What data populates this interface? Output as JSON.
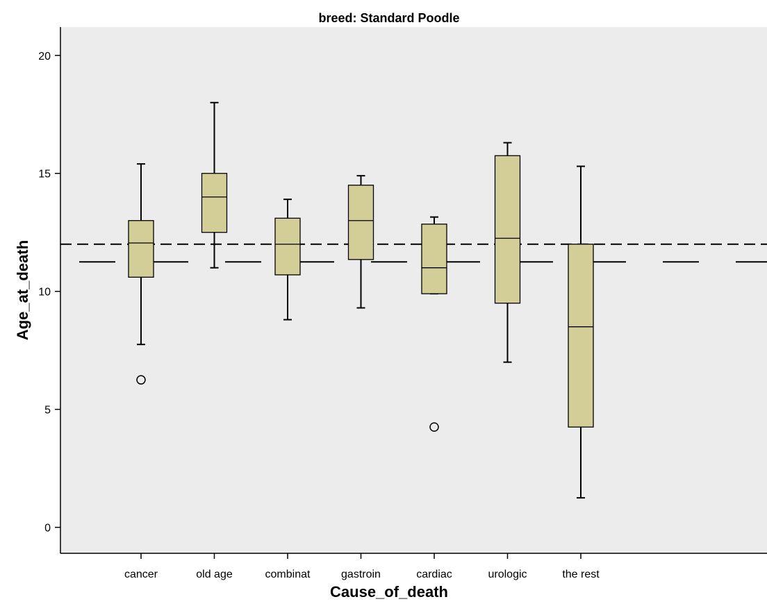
{
  "colors": {
    "plot_background": "#ececec",
    "box_fill": "#d3cd98",
    "stroke": "#000000"
  },
  "chart_data": {
    "type": "boxplot",
    "title": "breed: Standard Poodle",
    "xlabel": "Cause_of_death",
    "ylabel": "Age_at_death",
    "ylim": [
      -1.1,
      21.2
    ],
    "yticks": [
      0,
      5,
      10,
      15,
      20
    ],
    "grid": false,
    "categories": [
      "cancer",
      "old age",
      "combinat",
      "gastroin",
      "cardiac",
      "urologic",
      "the rest"
    ],
    "boxes": [
      {
        "category": "cancer",
        "whisker_low": 7.75,
        "q1": 10.6,
        "median": 12.05,
        "q3": 13.0,
        "whisker_high": 15.4,
        "outliers": [
          6.25
        ]
      },
      {
        "category": "old age",
        "whisker_low": 11.0,
        "q1": 12.5,
        "median": 14.0,
        "q3": 15.0,
        "whisker_high": 18.0,
        "outliers": []
      },
      {
        "category": "combinat",
        "whisker_low": 8.8,
        "q1": 10.7,
        "median": 12.0,
        "q3": 13.1,
        "whisker_high": 13.9,
        "outliers": []
      },
      {
        "category": "gastroin",
        "whisker_low": 9.3,
        "q1": 11.35,
        "median": 13.0,
        "q3": 14.5,
        "whisker_high": 14.9,
        "outliers": []
      },
      {
        "category": "cardiac",
        "whisker_low": 9.9,
        "q1": 9.9,
        "median": 11.0,
        "q3": 12.85,
        "whisker_high": 13.15,
        "outliers": [
          4.25
        ]
      },
      {
        "category": "urologic",
        "whisker_low": 7.0,
        "q1": 9.5,
        "median": 12.25,
        "q3": 15.75,
        "whisker_high": 16.3,
        "outliers": []
      },
      {
        "category": "the rest",
        "whisker_low": 1.25,
        "q1": 4.25,
        "median": 8.5,
        "q3": 12.0,
        "whisker_high": 15.3,
        "outliers": []
      }
    ],
    "reference_lines": [
      {
        "style": "dashed",
        "y": 12.0
      },
      {
        "style": "long-dash",
        "y": 11.25
      }
    ]
  }
}
